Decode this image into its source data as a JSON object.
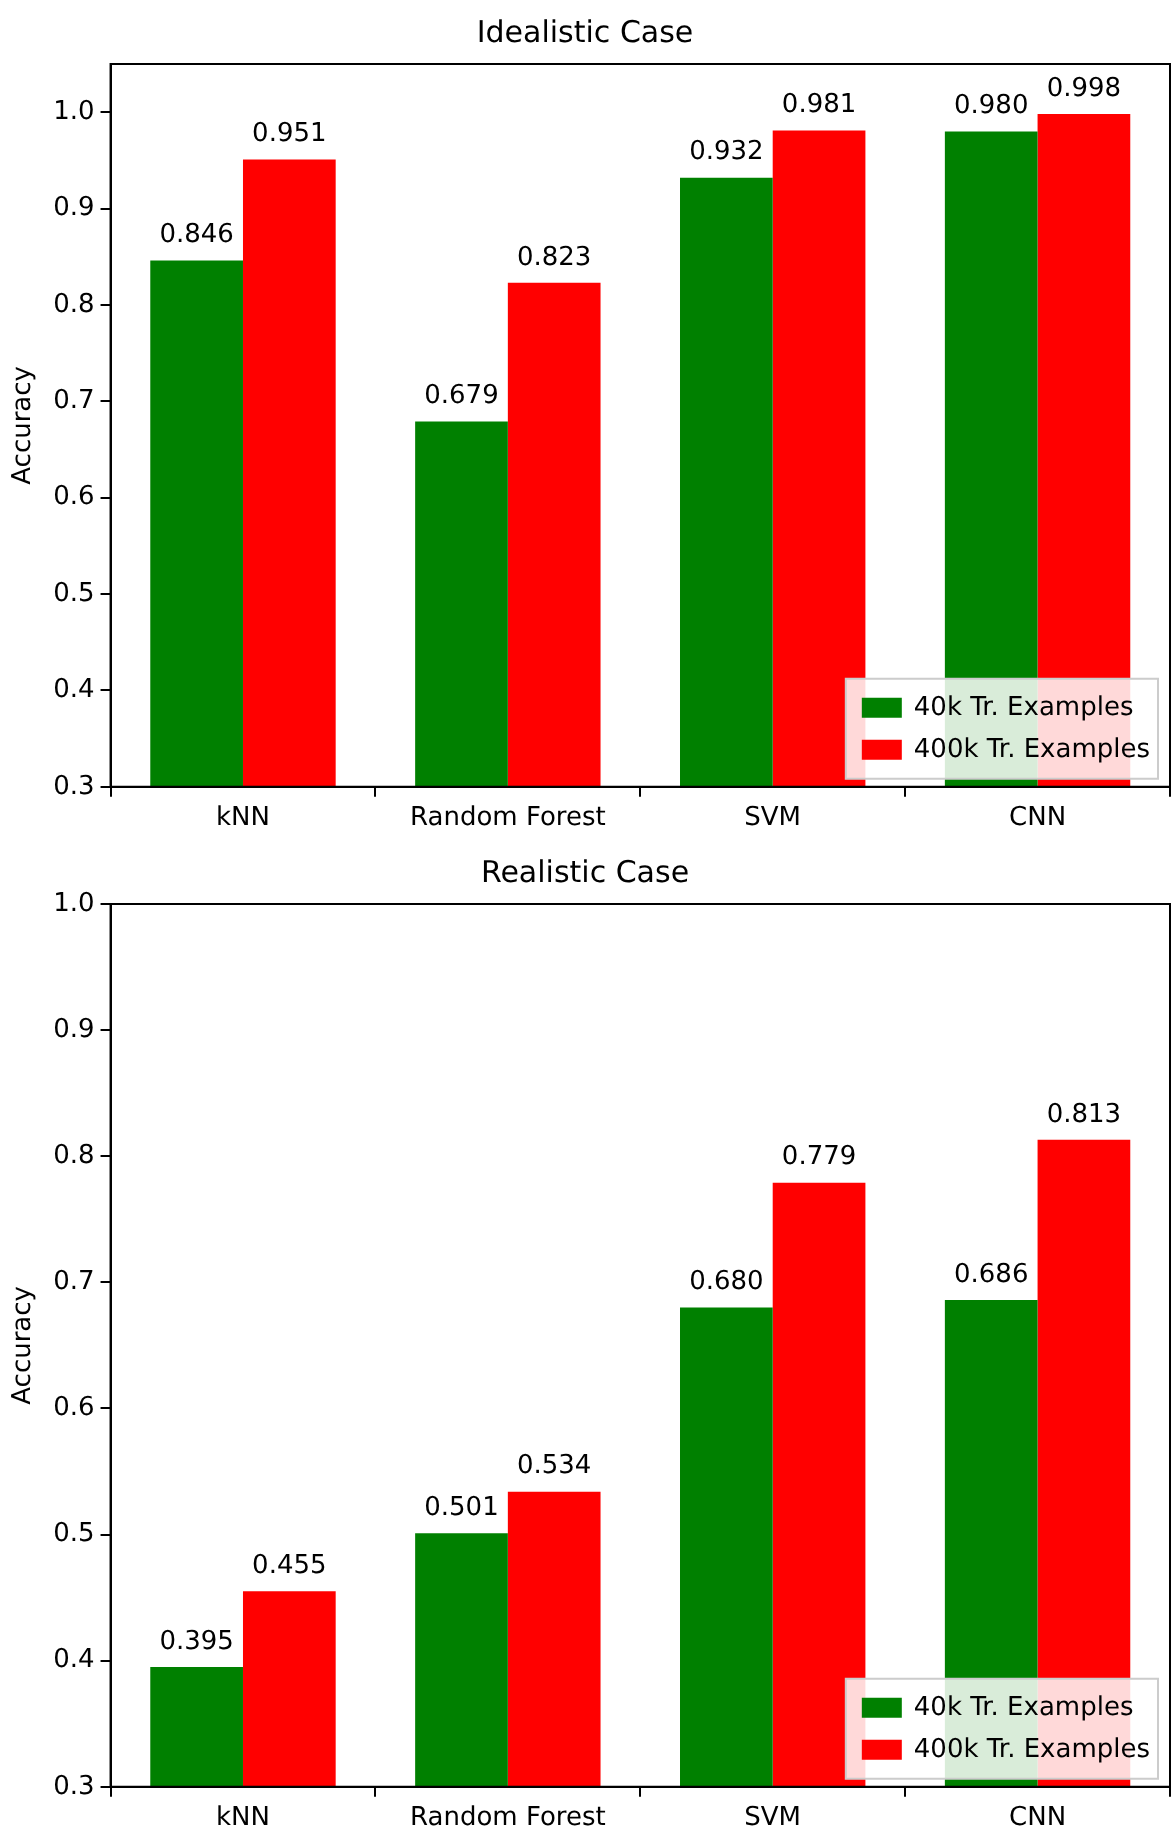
{
  "chart_data": [
    {
      "type": "bar",
      "title": "Idealistic Case",
      "ylabel": "Accuracy",
      "categories": [
        "kNN",
        "Random Forest",
        "SVM",
        "CNN"
      ],
      "series": [
        {
          "name": "40k Tr. Examples",
          "color": "#008000",
          "values": [
            0.846,
            0.679,
            0.932,
            0.98
          ],
          "value_labels": [
            "0.846",
            "0.679",
            "0.932",
            "0.980"
          ]
        },
        {
          "name": "400k Tr. Examples",
          "color": "#ff0000",
          "values": [
            0.951,
            0.823,
            0.981,
            0.998
          ],
          "value_labels": [
            "0.951",
            "0.823",
            "0.981",
            "0.998"
          ]
        }
      ],
      "ylim": [
        0.3,
        1.05
      ],
      "yticks": [
        0.3,
        0.4,
        0.5,
        0.6,
        0.7,
        0.8,
        0.9,
        {
          "value": 1,
          "label": "1.0"
        }
      ],
      "grid": false,
      "legend": "bottom right"
    },
    {
      "type": "bar",
      "title": "Realistic Case",
      "ylabel": "Accuracy",
      "categories": [
        "kNN",
        "Random Forest",
        "SVM",
        "CNN"
      ],
      "series": [
        {
          "name": "40k Tr. Examples",
          "color": "#008000",
          "values": [
            0.395,
            0.501,
            0.68,
            0.686
          ],
          "value_labels": [
            "0.395",
            "0.501",
            "0.680",
            "0.686"
          ]
        },
        {
          "name": "400k Tr. Examples",
          "color": "#ff0000",
          "values": [
            0.455,
            0.534,
            0.779,
            0.813
          ],
          "value_labels": [
            "0.455",
            "0.534",
            "0.779",
            "0.813"
          ]
        }
      ],
      "ylim": [
        0.3,
        1.0
      ],
      "yticks": [
        0.3,
        0.4,
        0.5,
        0.6,
        0.7,
        0.8,
        0.9,
        {
          "value": 1,
          "label": "1.0"
        }
      ],
      "grid": false,
      "legend": "bottom right"
    }
  ]
}
